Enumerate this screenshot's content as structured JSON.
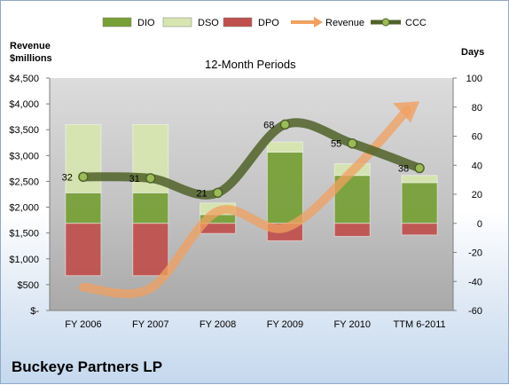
{
  "company": "Buckeye Partners LP",
  "chart_data": {
    "type": "bar",
    "subtitle": "12-Month Periods",
    "ylabel_left": "Revenue\n$millions",
    "ylabel_right": "Days",
    "categories": [
      "FY 2006",
      "FY 2007",
      "FY 2008",
      "FY 2009",
      "FY 2010",
      "TTM 6-2011"
    ],
    "left_axis": {
      "range": [
        0,
        4500
      ],
      "ticks": [
        0,
        500,
        1000,
        1500,
        2000,
        2500,
        3000,
        3500,
        4000,
        4500
      ],
      "tick_labels": [
        "$-",
        "$500",
        "$1,000",
        "$1,500",
        "$2,000",
        "$2,500",
        "$3,000",
        "$3,500",
        "$4,000",
        "$4,500"
      ]
    },
    "right_axis": {
      "range": [
        -60,
        100
      ],
      "ticks": [
        -60,
        -40,
        -20,
        0,
        20,
        40,
        60,
        80,
        100
      ],
      "tick_labels": [
        "-60",
        "-40",
        "-20",
        "0",
        "20",
        "40",
        "60",
        "80",
        "100"
      ]
    },
    "series": [
      {
        "name": "DIO",
        "type": "stacked-bar",
        "axis": "right",
        "color": "#77a036",
        "values": [
          21,
          21,
          6,
          49,
          33,
          28
        ]
      },
      {
        "name": "DSO",
        "type": "stacked-bar",
        "axis": "right",
        "color": "#d7e6b0",
        "values": [
          47,
          47,
          8,
          7,
          8,
          5
        ]
      },
      {
        "name": "DPO",
        "type": "negative-bar",
        "axis": "right",
        "color": "#c0504d",
        "values": [
          -36,
          -36,
          -7,
          -12,
          -9,
          -8
        ]
      },
      {
        "name": "Revenue",
        "type": "line",
        "axis": "left",
        "color": "#f0a060",
        "values": [
          450,
          430,
          1920,
          1600,
          2700,
          4050
        ]
      },
      {
        "name": "CCC",
        "type": "line",
        "axis": "right",
        "color": "#4f6228",
        "values": [
          32,
          31,
          21,
          68,
          55,
          38
        ]
      }
    ],
    "data_labels": [
      "32",
      "31",
      "21",
      "68",
      "55",
      "38"
    ],
    "legend_position": "top",
    "grid": false
  }
}
